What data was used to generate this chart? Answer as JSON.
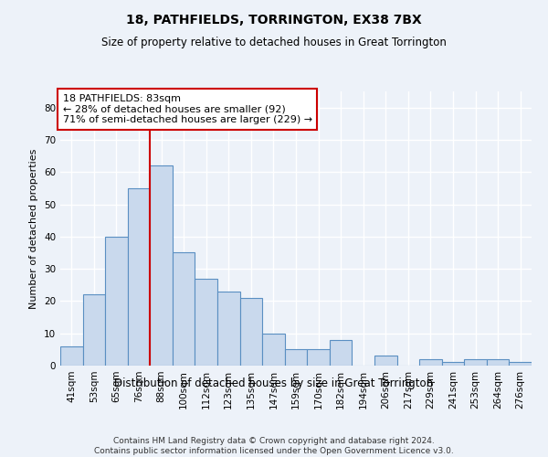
{
  "title": "18, PATHFIELDS, TORRINGTON, EX38 7BX",
  "subtitle": "Size of property relative to detached houses in Great Torrington",
  "xlabel": "Distribution of detached houses by size in Great Torrington",
  "ylabel": "Number of detached properties",
  "categories": [
    "41sqm",
    "53sqm",
    "65sqm",
    "76sqm",
    "88sqm",
    "100sqm",
    "112sqm",
    "123sqm",
    "135sqm",
    "147sqm",
    "159sqm",
    "170sqm",
    "182sqm",
    "194sqm",
    "206sqm",
    "217sqm",
    "229sqm",
    "241sqm",
    "253sqm",
    "264sqm",
    "276sqm"
  ],
  "values": [
    6,
    22,
    40,
    55,
    62,
    35,
    27,
    23,
    21,
    10,
    5,
    5,
    8,
    0,
    3,
    0,
    2,
    1,
    2,
    2,
    1
  ],
  "bar_color": "#c9d9ed",
  "bar_edge_color": "#5a8fc2",
  "ylim": [
    0,
    85
  ],
  "yticks": [
    0,
    10,
    20,
    30,
    40,
    50,
    60,
    70,
    80
  ],
  "vline_x_index": 4,
  "annotation_title": "18 PATHFIELDS: 83sqm",
  "annotation_line1": "← 28% of detached houses are smaller (92)",
  "annotation_line2": "71% of semi-detached houses are larger (229) →",
  "footer_line1": "Contains HM Land Registry data © Crown copyright and database right 2024.",
  "footer_line2": "Contains public sector information licensed under the Open Government Licence v3.0.",
  "background_color": "#edf2f9",
  "grid_color": "#ffffff",
  "annotation_box_color": "#ffffff",
  "annotation_box_edge": "#cc0000",
  "vline_color": "#cc0000",
  "title_fontsize": 10,
  "subtitle_fontsize": 8.5,
  "ylabel_fontsize": 8,
  "tick_fontsize": 7.5,
  "footer_fontsize": 6.5,
  "annot_fontsize": 8
}
